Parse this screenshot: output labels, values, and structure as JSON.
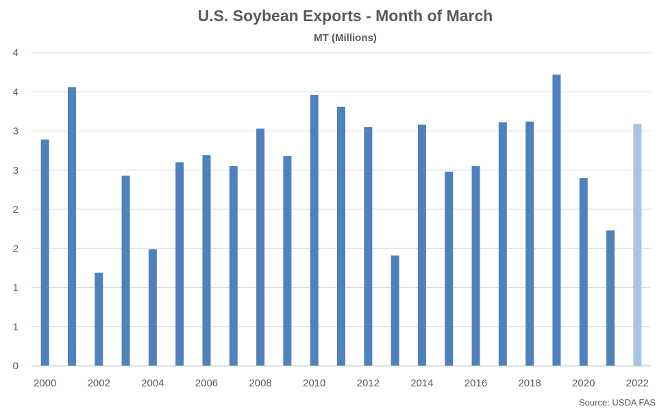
{
  "chart_data": {
    "type": "bar",
    "title": "U.S. Soybean Exports - Month of March",
    "subtitle": "MT (Millions)",
    "xlabel": "",
    "ylabel": "",
    "source": "Source: USDA FAS",
    "categories": [
      "2000",
      "2001",
      "2002",
      "2003",
      "2004",
      "2005",
      "2006",
      "2007",
      "2008",
      "2009",
      "2010",
      "2011",
      "2012",
      "2013",
      "2014",
      "2015",
      "2016",
      "2017",
      "2018",
      "2019",
      "2020",
      "2021",
      "2022"
    ],
    "x_tick_labels": [
      "2000",
      "2002",
      "2004",
      "2006",
      "2008",
      "2010",
      "2012",
      "2014",
      "2016",
      "2018",
      "2020",
      "2022"
    ],
    "y_tick_labels": [
      "0",
      "1",
      "1",
      "2",
      "2",
      "3",
      "3",
      "4",
      "4"
    ],
    "ylim": [
      0,
      4
    ],
    "grid": true,
    "legend": "none",
    "series": [
      {
        "values": [
          2.89,
          3.56,
          1.19,
          2.43,
          1.49,
          2.6,
          2.69,
          2.55,
          3.03,
          2.68,
          3.46,
          3.31,
          3.05,
          1.41,
          3.08,
          2.48,
          2.55,
          3.11,
          3.12,
          3.72,
          2.4,
          1.73,
          3.09
        ],
        "colors": [
          "#4f81bd",
          "#4f81bd",
          "#4f81bd",
          "#4f81bd",
          "#4f81bd",
          "#4f81bd",
          "#4f81bd",
          "#4f81bd",
          "#4f81bd",
          "#4f81bd",
          "#4f81bd",
          "#4f81bd",
          "#4f81bd",
          "#4f81bd",
          "#4f81bd",
          "#4f81bd",
          "#4f81bd",
          "#4f81bd",
          "#4f81bd",
          "#4f81bd",
          "#4f81bd",
          "#4f81bd",
          "#a9c4e2"
        ]
      }
    ]
  }
}
